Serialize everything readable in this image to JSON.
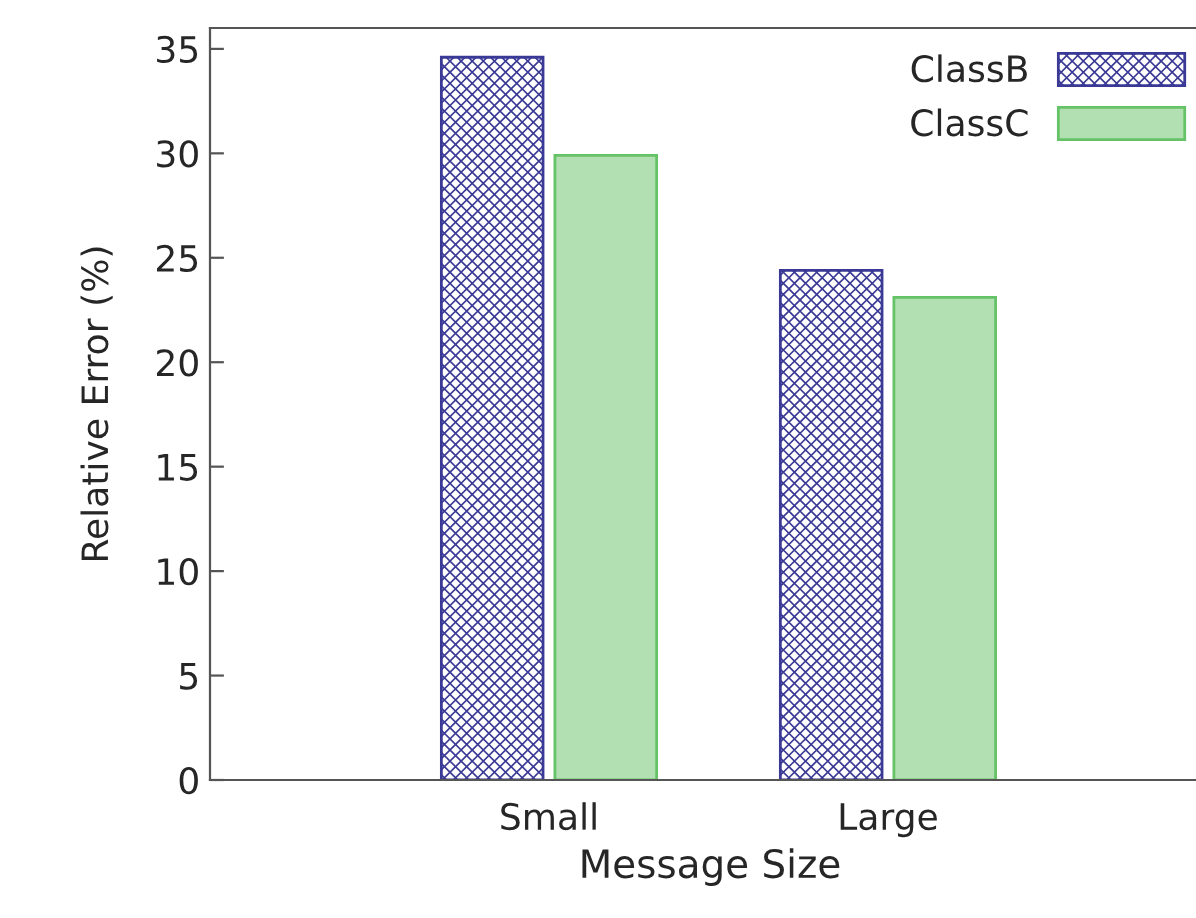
{
  "chart_data": {
    "type": "bar",
    "xlabel": "Message Size",
    "ylabel": "Relative Error (%)",
    "categories": [
      "Small",
      "Large"
    ],
    "series": [
      {
        "name": "ClassB",
        "color": "#3a3a96",
        "values": [
          34.6,
          24.4
        ]
      },
      {
        "name": "ClassC",
        "color": "#66c266",
        "values": [
          29.9,
          23.1
        ]
      }
    ],
    "ylim": [
      0,
      36
    ],
    "yticks": [
      0,
      5,
      10,
      15,
      20,
      25,
      30,
      35
    ],
    "legend": "top right",
    "grid": false
  }
}
